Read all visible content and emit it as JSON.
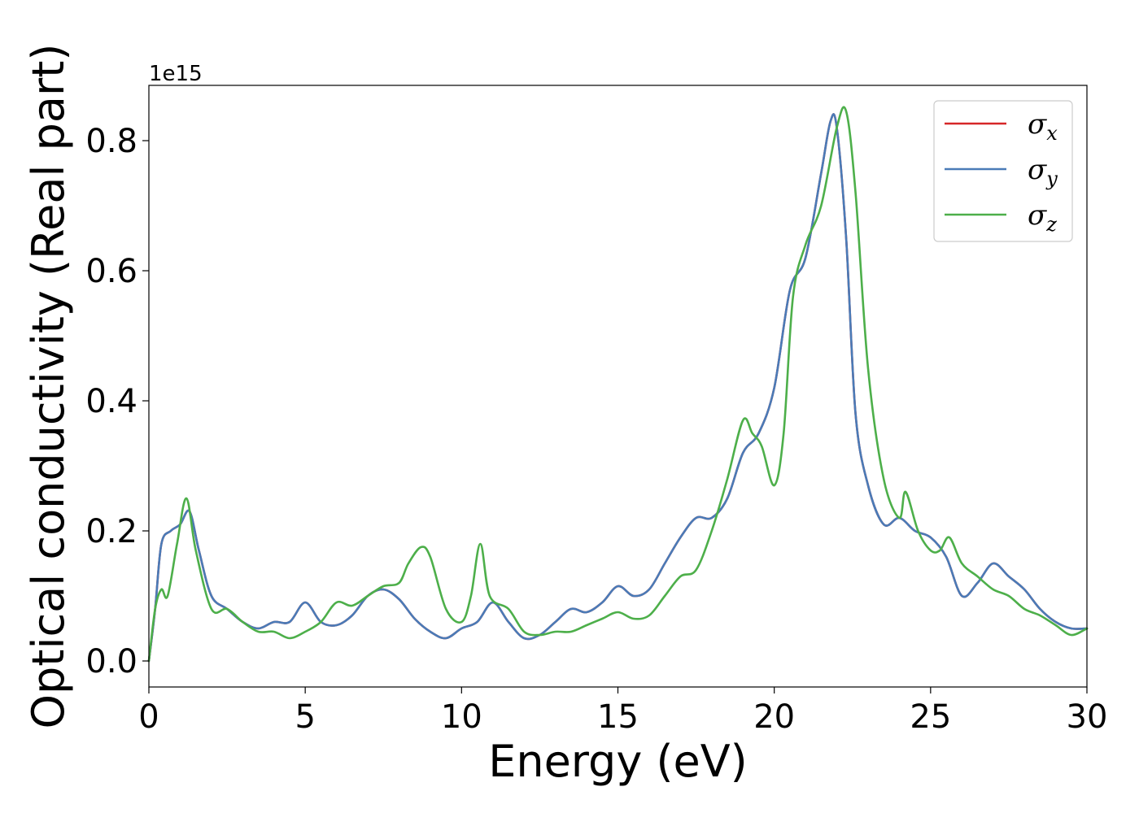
{
  "chart_data": {
    "type": "line",
    "xlabel": "Energy (eV)",
    "ylabel": "Optical conductivity (Real part)",
    "offset_text": "1e15",
    "xlim": [
      0,
      30
    ],
    "ylim": [
      -0.04,
      0.885
    ],
    "x_ticks": [
      0,
      5,
      10,
      15,
      20,
      25,
      30
    ],
    "x_tick_labels": [
      "0",
      "5",
      "10",
      "15",
      "20",
      "25",
      "30"
    ],
    "y_ticks": [
      0.0,
      0.2,
      0.4,
      0.6,
      0.8
    ],
    "y_tick_labels": [
      "0.0",
      "0.2",
      "0.4",
      "0.6",
      "0.8"
    ],
    "grid": false,
    "legend_position": "top-right",
    "series": [
      {
        "name": "σx",
        "base": "σ",
        "sub": "x",
        "color": "#d62728",
        "x": [
          0,
          0.2,
          0.4,
          0.7,
          1.0,
          1.3,
          1.6,
          2.0,
          2.5,
          3.0,
          3.5,
          4.0,
          4.5,
          5.0,
          5.5,
          6.0,
          6.5,
          7.0,
          7.5,
          8.0,
          8.5,
          9.0,
          9.5,
          10.0,
          10.5,
          11.0,
          11.5,
          12.0,
          12.5,
          13.0,
          13.5,
          14.0,
          14.5,
          15.0,
          15.5,
          16.0,
          16.5,
          17.0,
          17.5,
          18.0,
          18.5,
          19.0,
          19.5,
          20.0,
          20.5,
          21.0,
          21.5,
          21.8,
          22.0,
          22.3,
          22.6,
          23.0,
          23.5,
          24.0,
          24.5,
          25.0,
          25.5,
          26.0,
          26.5,
          27.0,
          27.5,
          28.0,
          28.5,
          29.0,
          29.5,
          30.0
        ],
        "y": [
          0.0,
          0.08,
          0.18,
          0.2,
          0.21,
          0.23,
          0.17,
          0.1,
          0.08,
          0.06,
          0.05,
          0.06,
          0.06,
          0.09,
          0.06,
          0.055,
          0.07,
          0.1,
          0.11,
          0.095,
          0.065,
          0.045,
          0.035,
          0.05,
          0.06,
          0.09,
          0.06,
          0.035,
          0.04,
          0.06,
          0.08,
          0.075,
          0.09,
          0.115,
          0.1,
          0.11,
          0.15,
          0.19,
          0.22,
          0.22,
          0.25,
          0.32,
          0.35,
          0.42,
          0.57,
          0.62,
          0.75,
          0.83,
          0.82,
          0.65,
          0.38,
          0.27,
          0.21,
          0.22,
          0.2,
          0.19,
          0.16,
          0.1,
          0.12,
          0.15,
          0.13,
          0.11,
          0.08,
          0.06,
          0.05,
          0.05
        ]
      },
      {
        "name": "σy",
        "base": "σ",
        "sub": "y",
        "color": "#4a7bb7",
        "x": [
          0,
          0.2,
          0.4,
          0.7,
          1.0,
          1.3,
          1.6,
          2.0,
          2.5,
          3.0,
          3.5,
          4.0,
          4.5,
          5.0,
          5.5,
          6.0,
          6.5,
          7.0,
          7.5,
          8.0,
          8.5,
          9.0,
          9.5,
          10.0,
          10.5,
          11.0,
          11.5,
          12.0,
          12.5,
          13.0,
          13.5,
          14.0,
          14.5,
          15.0,
          15.5,
          16.0,
          16.5,
          17.0,
          17.5,
          18.0,
          18.5,
          19.0,
          19.5,
          20.0,
          20.5,
          21.0,
          21.5,
          21.8,
          22.0,
          22.3,
          22.6,
          23.0,
          23.5,
          24.0,
          24.5,
          25.0,
          25.5,
          26.0,
          26.5,
          27.0,
          27.5,
          28.0,
          28.5,
          29.0,
          29.5,
          30.0
        ],
        "y": [
          0.0,
          0.08,
          0.18,
          0.2,
          0.21,
          0.23,
          0.17,
          0.1,
          0.08,
          0.06,
          0.05,
          0.06,
          0.06,
          0.09,
          0.06,
          0.055,
          0.07,
          0.1,
          0.11,
          0.095,
          0.065,
          0.045,
          0.035,
          0.05,
          0.06,
          0.09,
          0.06,
          0.035,
          0.04,
          0.06,
          0.08,
          0.075,
          0.09,
          0.115,
          0.1,
          0.11,
          0.15,
          0.19,
          0.22,
          0.22,
          0.25,
          0.32,
          0.35,
          0.42,
          0.57,
          0.62,
          0.75,
          0.83,
          0.82,
          0.65,
          0.38,
          0.27,
          0.21,
          0.22,
          0.2,
          0.19,
          0.16,
          0.1,
          0.12,
          0.15,
          0.13,
          0.11,
          0.08,
          0.06,
          0.05,
          0.05
        ]
      },
      {
        "name": "σz",
        "base": "σ",
        "sub": "z",
        "color": "#4daf4a",
        "x": [
          0,
          0.2,
          0.4,
          0.6,
          0.9,
          1.2,
          1.5,
          2.0,
          2.5,
          3.0,
          3.5,
          4.0,
          4.5,
          5.0,
          5.5,
          6.0,
          6.5,
          7.0,
          7.5,
          8.0,
          8.3,
          8.7,
          9.0,
          9.5,
          10.0,
          10.3,
          10.6,
          10.9,
          11.5,
          12.0,
          12.5,
          13.0,
          13.5,
          14.0,
          14.5,
          15.0,
          15.5,
          16.0,
          16.5,
          17.0,
          17.5,
          18.0,
          18.5,
          19.0,
          19.3,
          19.6,
          20.0,
          20.3,
          20.6,
          21.0,
          21.5,
          22.0,
          22.3,
          22.6,
          23.0,
          23.5,
          24.0,
          24.2,
          24.6,
          25.0,
          25.3,
          25.6,
          26.0,
          26.5,
          27.0,
          27.5,
          28.0,
          28.5,
          29.0,
          29.5,
          30.0
        ],
        "y": [
          0.0,
          0.08,
          0.11,
          0.1,
          0.18,
          0.25,
          0.17,
          0.08,
          0.08,
          0.06,
          0.045,
          0.045,
          0.035,
          0.045,
          0.06,
          0.09,
          0.085,
          0.1,
          0.115,
          0.12,
          0.15,
          0.175,
          0.16,
          0.08,
          0.06,
          0.1,
          0.18,
          0.1,
          0.08,
          0.045,
          0.04,
          0.045,
          0.045,
          0.055,
          0.065,
          0.075,
          0.065,
          0.07,
          0.1,
          0.13,
          0.14,
          0.2,
          0.28,
          0.37,
          0.35,
          0.33,
          0.27,
          0.35,
          0.56,
          0.64,
          0.7,
          0.82,
          0.845,
          0.72,
          0.45,
          0.28,
          0.22,
          0.26,
          0.2,
          0.17,
          0.17,
          0.19,
          0.15,
          0.13,
          0.11,
          0.1,
          0.08,
          0.07,
          0.055,
          0.04,
          0.05
        ]
      }
    ]
  }
}
